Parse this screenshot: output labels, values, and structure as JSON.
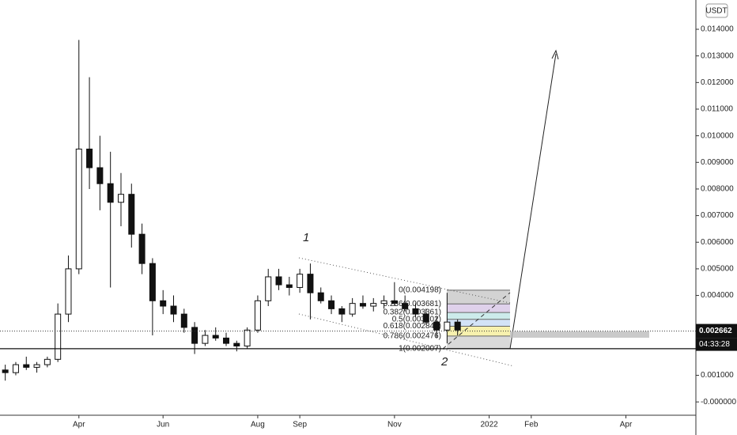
{
  "chart_data": {
    "type": "candlestick",
    "currency": "USDT",
    "categories": [
      null,
      null,
      null,
      null,
      null,
      null,
      null,
      "Apr",
      null,
      null,
      null,
      null,
      null,
      null,
      null,
      "Jun",
      null,
      null,
      null,
      null,
      null,
      null,
      null,
      null,
      "Aug",
      null,
      null,
      null,
      "Sep",
      null,
      null,
      null,
      null,
      null,
      null,
      null,
      null,
      "Nov",
      null,
      null,
      null,
      null,
      null,
      null,
      null,
      null,
      "2022",
      null,
      null,
      null,
      "Feb",
      null,
      null,
      null,
      null,
      null,
      null,
      null,
      null,
      "Apr",
      null,
      null,
      null,
      null,
      null,
      null
    ],
    "open": [
      0.0012,
      0.0011,
      0.0014,
      0.0013,
      0.0014,
      0.0016,
      0.0033,
      0.005,
      0.0095,
      0.0088,
      0.0082,
      0.0075,
      0.0078,
      0.0063,
      0.0052,
      0.0038,
      0.0036,
      0.0033,
      0.0028,
      0.0022,
      0.0025,
      0.0024,
      0.0022,
      0.0021,
      0.0027,
      0.0038,
      0.0047,
      0.0044,
      0.0043,
      0.0048,
      0.0041,
      0.0038,
      0.0035,
      0.0033,
      0.0037,
      0.0036,
      0.0037,
      0.0038,
      0.0037,
      0.0035,
      0.0033,
      0.003,
      0.0027,
      0.003,
      null,
      null,
      null,
      null,
      null,
      null,
      null,
      null,
      null,
      null,
      null,
      null,
      null,
      null,
      null,
      null,
      null,
      null,
      null,
      null,
      null,
      null
    ],
    "high": [
      0.0014,
      0.0015,
      0.0017,
      0.0015,
      0.0017,
      0.0037,
      0.0055,
      0.0136,
      0.0122,
      0.01,
      0.0094,
      0.0086,
      0.0082,
      0.0067,
      0.0054,
      0.0042,
      0.004,
      0.0035,
      0.003,
      0.0027,
      0.0028,
      0.0026,
      0.0023,
      0.0028,
      0.004,
      0.005,
      0.005,
      0.0047,
      0.005,
      0.0052,
      0.0043,
      0.004,
      0.0036,
      0.0039,
      0.004,
      0.0039,
      0.004,
      0.0045,
      0.004,
      0.0037,
      0.0035,
      0.0032,
      0.0041,
      0.0031,
      null,
      null,
      null,
      null,
      null,
      null,
      null,
      null,
      null,
      null,
      null,
      null,
      null,
      null,
      null,
      null,
      null,
      null,
      null,
      null,
      null,
      null
    ],
    "low": [
      0.0008,
      0.001,
      0.0012,
      0.0011,
      0.0013,
      0.0015,
      0.003,
      0.0048,
      0.008,
      0.0072,
      0.0043,
      0.0066,
      0.0058,
      0.0048,
      0.0025,
      0.0033,
      0.003,
      0.0026,
      0.0018,
      0.0021,
      0.0023,
      0.0021,
      0.0019,
      0.002,
      0.0026,
      0.0036,
      0.0042,
      0.004,
      0.0041,
      0.0031,
      0.0037,
      0.0033,
      0.003,
      0.0032,
      0.0035,
      0.0034,
      0.0035,
      0.0036,
      0.0034,
      0.0032,
      0.0029,
      0.0024,
      0.0022,
      0.0025,
      null,
      null,
      null,
      null,
      null,
      null,
      null,
      null,
      null,
      null,
      null,
      null,
      null,
      null,
      null,
      null,
      null,
      null,
      null,
      null,
      null,
      null
    ],
    "close": [
      0.0011,
      0.0014,
      0.0013,
      0.0014,
      0.0016,
      0.0033,
      0.005,
      0.0095,
      0.0088,
      0.0082,
      0.0075,
      0.0078,
      0.0063,
      0.0052,
      0.0038,
      0.0036,
      0.0033,
      0.0028,
      0.0022,
      0.0025,
      0.0024,
      0.0022,
      0.0021,
      0.0027,
      0.0038,
      0.0047,
      0.0044,
      0.0043,
      0.0048,
      0.0041,
      0.0038,
      0.0035,
      0.0033,
      0.0037,
      0.0036,
      0.0037,
      0.0038,
      0.0037,
      0.0035,
      0.0033,
      0.003,
      0.0027,
      0.003,
      0.0027,
      null,
      null,
      null,
      null,
      null,
      null,
      null,
      null,
      null,
      null,
      null,
      null,
      null,
      null,
      null,
      null,
      null,
      null,
      null,
      null,
      null,
      null
    ],
    "ylim": [
      -0.0005,
      0.0151
    ],
    "yticks": [
      {
        "value": 0.014,
        "label": "0.014000"
      },
      {
        "value": 0.013,
        "label": "0.013000"
      },
      {
        "value": 0.012,
        "label": "0.012000"
      },
      {
        "value": 0.011,
        "label": "0.011000"
      },
      {
        "value": 0.01,
        "label": "0.010000"
      },
      {
        "value": 0.009,
        "label": "0.009000"
      },
      {
        "value": 0.008,
        "label": "0.008000"
      },
      {
        "value": 0.007,
        "label": "0.007000"
      },
      {
        "value": 0.006,
        "label": "0.006000"
      },
      {
        "value": 0.005,
        "label": "0.005000"
      },
      {
        "value": 0.004,
        "label": "0.004000"
      },
      {
        "value": 0.001,
        "label": "0.001000"
      },
      {
        "value": 0,
        "label": "-0.000000"
      }
    ],
    "last_price": {
      "value": 0.002662,
      "label": "0.002662"
    },
    "timer": "04:33:28",
    "support": 0.002,
    "annotations": [
      "1",
      "2"
    ],
    "fib": [
      {
        "label": "0(0.004198)",
        "value": 0.004198,
        "color": "#c8c8c8"
      },
      {
        "label": "0.236(0.003681)",
        "value": 0.003681,
        "color": "#d7c6e6"
      },
      {
        "label": "0.382(0.003361)",
        "value": 0.003361,
        "color": "#bfe6e6"
      },
      {
        "label": "0.5(0.003102)",
        "value": 0.003102,
        "color": "#c8dcf5"
      },
      {
        "label": "0.618(0.002843)",
        "value": 0.002843,
        "color": "#f5ee9a"
      },
      {
        "label": "0.786(0.002476)",
        "value": 0.002476,
        "color": "#cfcfcf"
      },
      {
        "label": "1(0.002007)",
        "value": 0.002007,
        "color": "#cfcfcf"
      }
    ]
  }
}
